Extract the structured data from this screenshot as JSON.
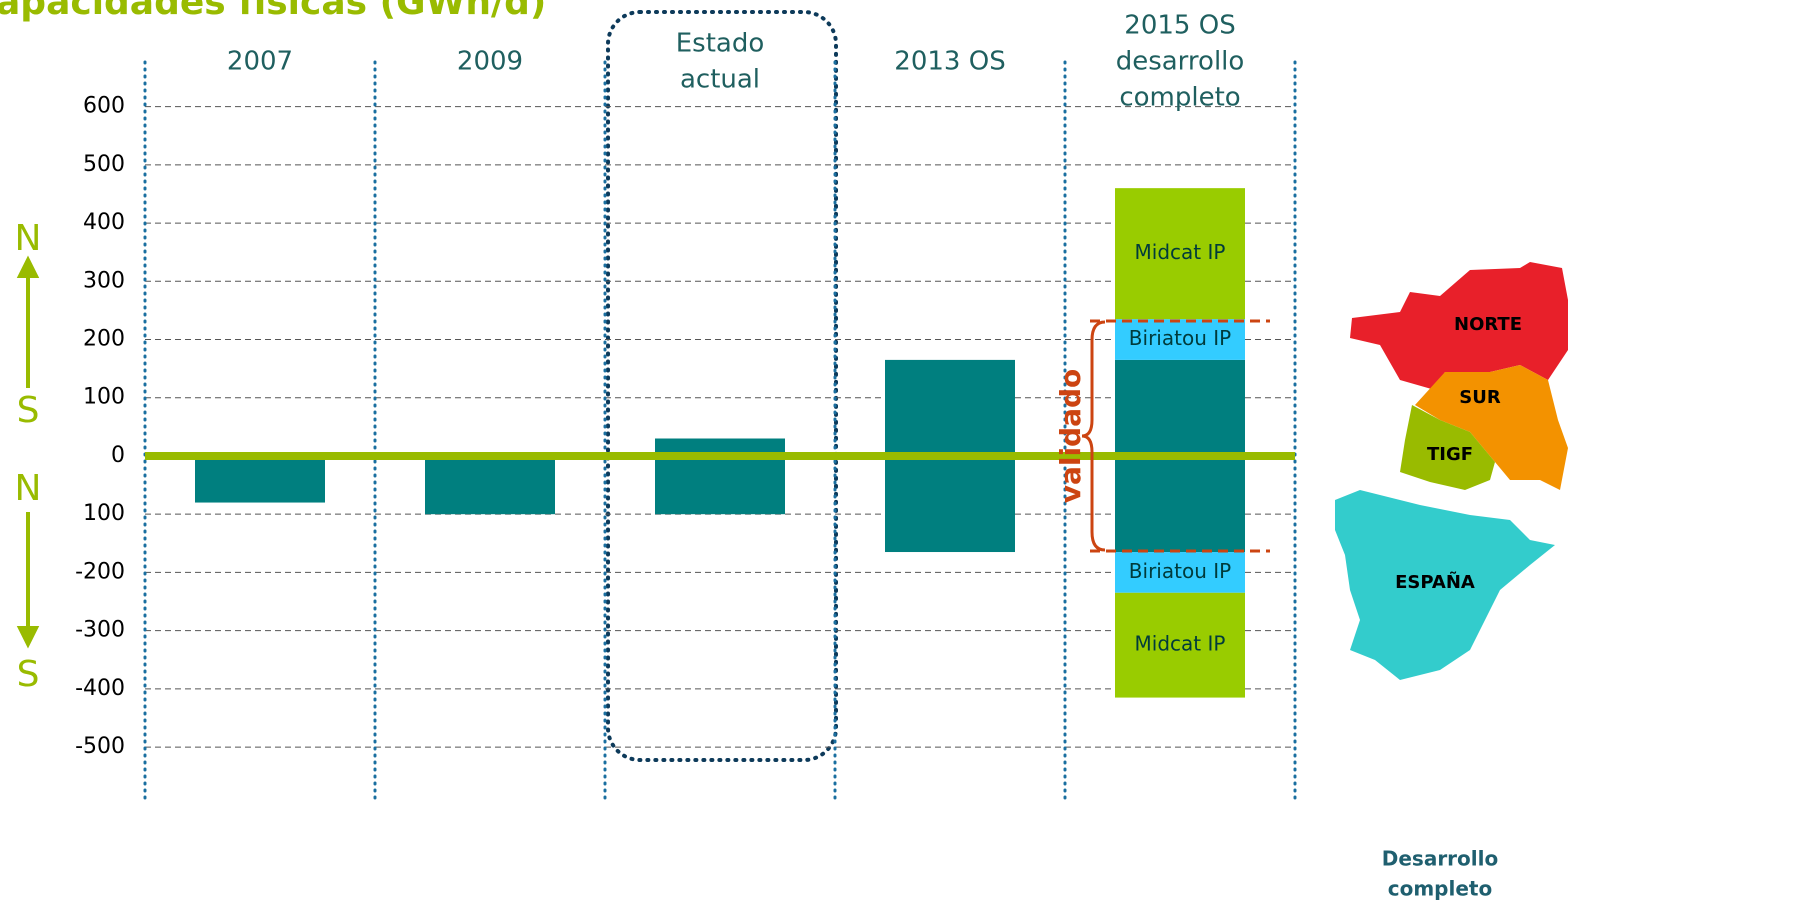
{
  "chart_data": {
    "type": "bar",
    "title": "apacidades físicas (GWh/d)",
    "categories": [
      [
        "2007"
      ],
      [
        "2009"
      ],
      [
        "Estado",
        "actual"
      ],
      [
        "2013 OS"
      ],
      [
        "2015 OS",
        "desarrollo",
        "completo"
      ]
    ],
    "series": [
      {
        "color": "#007f7f",
        "values": [
          null,
          null,
          30,
          165,
          165
        ]
      },
      {
        "color": "#007f7f",
        "values": [
          -80,
          -100,
          -100,
          -165,
          -165
        ]
      },
      {
        "name": "Biriatou IP",
        "color": "#33ccff",
        "values": [
          null,
          null,
          null,
          null,
          70
        ]
      },
      {
        "name": "Biriatou IP",
        "color": "#33ccff",
        "values": [
          null,
          null,
          null,
          null,
          -70
        ]
      },
      {
        "name": "Midcat IP",
        "color": "#99cc00",
        "values": [
          null,
          null,
          null,
          null,
          225
        ]
      },
      {
        "name": "Midcat IP",
        "color": "#99cc00",
        "values": [
          null,
          null,
          null,
          null,
          -180
        ]
      }
    ],
    "ylim": [
      -560,
      620
    ],
    "yticks": [
      -500,
      -400,
      -300,
      -200,
      {
        "value": -100,
        "label": "100"
      },
      0,
      100,
      200,
      300,
      400,
      500,
      600
    ],
    "grid": true,
    "annotations": {
      "validated": "validado",
      "direction_labels": [
        "N",
        "S",
        "N",
        "S"
      ],
      "map_labels": [
        "NORTE",
        "SUR",
        "TIGF",
        "ESPAÑA"
      ],
      "map_caption": [
        "Desarrollo",
        "completo"
      ]
    }
  }
}
